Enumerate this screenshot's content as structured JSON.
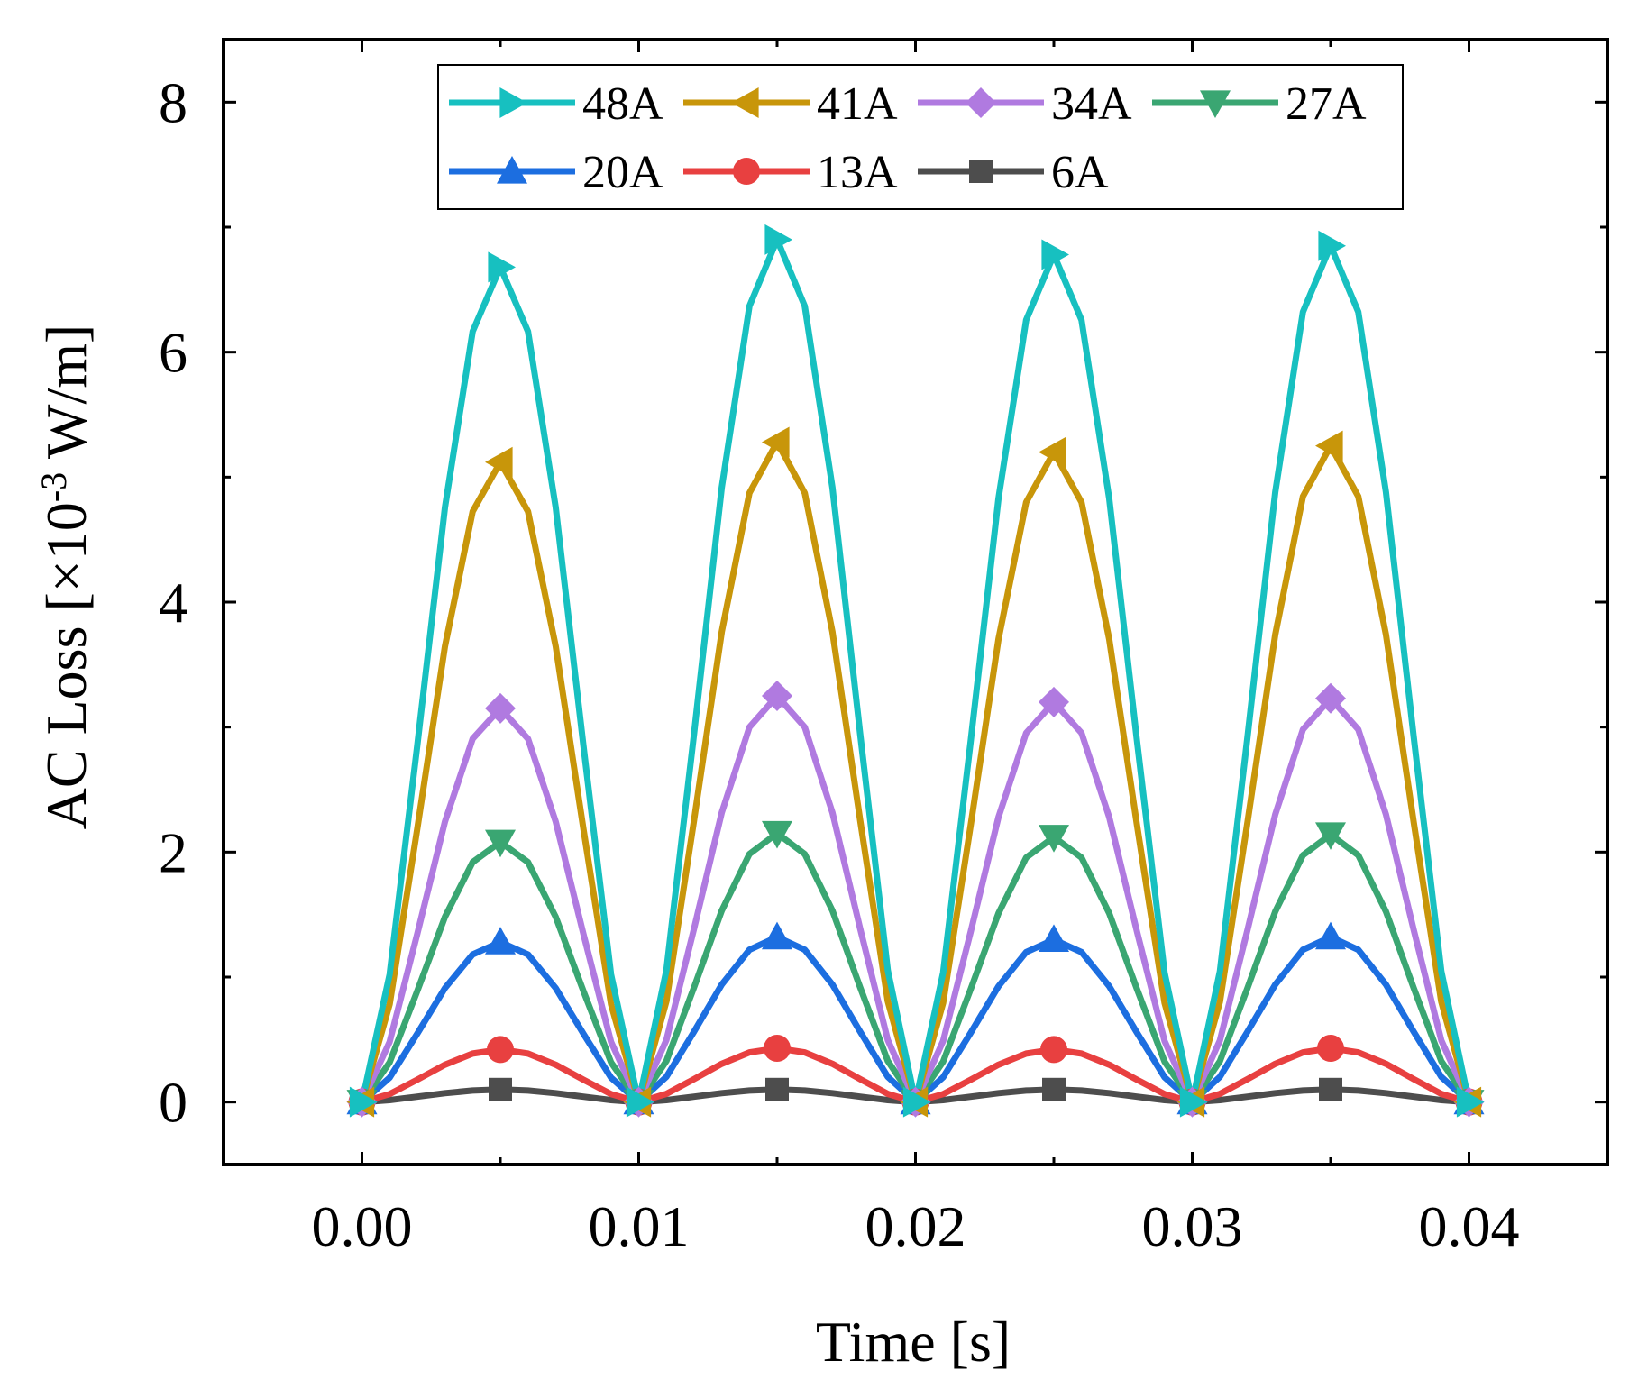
{
  "chart_data": {
    "type": "line",
    "xlabel": "Time [s]",
    "ylabel": {
      "main": "AC Loss [×10",
      "sup": "-3",
      "tail": " W/m]"
    },
    "xlim": [
      -0.005,
      0.045
    ],
    "ylim": [
      -0.5,
      8.5
    ],
    "x_ticks": [
      "0.00",
      "0.01",
      "0.02",
      "0.03",
      "0.04"
    ],
    "y_ticks": [
      "0",
      "2",
      "4",
      "6",
      "8"
    ],
    "legend_position": "top",
    "x": [
      0.0,
      0.001,
      0.002,
      0.003,
      0.004,
      0.005,
      0.006,
      0.007,
      0.008,
      0.009,
      0.01,
      0.011,
      0.012,
      0.013,
      0.014,
      0.015,
      0.016,
      0.017,
      0.018,
      0.019,
      0.02,
      0.021,
      0.022,
      0.023,
      0.024,
      0.025,
      0.026,
      0.027,
      0.028,
      0.029,
      0.03,
      0.031,
      0.032,
      0.033,
      0.034,
      0.035,
      0.036,
      0.037,
      0.038,
      0.039,
      0.04
    ],
    "marker_x": [
      0.0,
      0.005,
      0.01,
      0.015,
      0.02,
      0.025,
      0.03,
      0.035,
      0.04
    ],
    "series": [
      {
        "name": "48A",
        "color": "#17c0c0",
        "marker": "triangle-right",
        "peaks": [
          6.68,
          6.9,
          6.78,
          6.85
        ]
      },
      {
        "name": "41A",
        "color": "#c8960a",
        "marker": "triangle-left",
        "peaks": [
          5.12,
          5.28,
          5.2,
          5.25
        ]
      },
      {
        "name": "34A",
        "color": "#b07ae0",
        "marker": "diamond",
        "peaks": [
          3.15,
          3.25,
          3.2,
          3.23
        ]
      },
      {
        "name": "27A",
        "color": "#3aa672",
        "marker": "triangle-down",
        "peaks": [
          2.08,
          2.15,
          2.12,
          2.14
        ]
      },
      {
        "name": "20A",
        "color": "#1c6ee0",
        "marker": "triangle-up",
        "peaks": [
          1.28,
          1.32,
          1.3,
          1.32
        ]
      },
      {
        "name": "13A",
        "color": "#e84040",
        "marker": "circle",
        "peaks": [
          0.42,
          0.43,
          0.42,
          0.43
        ]
      },
      {
        "name": "6A",
        "color": "#4d4d4d",
        "marker": "square",
        "peaks": [
          0.1,
          0.1,
          0.1,
          0.1
        ]
      }
    ]
  }
}
